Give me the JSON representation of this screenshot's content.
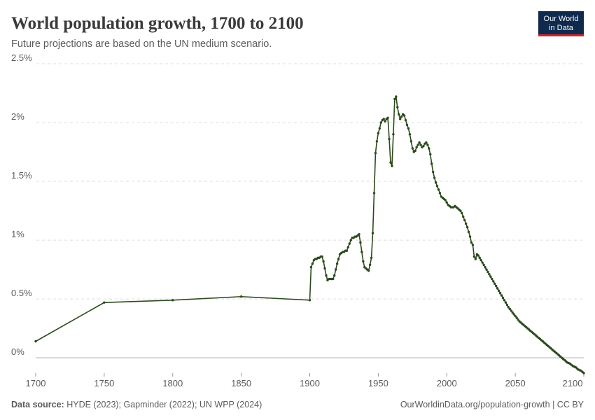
{
  "chart_data": {
    "type": "line",
    "title": "World population growth, 1700 to 2100",
    "subtitle": "Future projections are based on the UN medium scenario.",
    "logo": [
      "Our World",
      "in Data"
    ],
    "source_label": "Data source:",
    "source": "HYDE (2023); Gapminder (2022); UN WPP (2024)",
    "footer_right": "OurWorldinData.org/population-growth | CC BY",
    "xlim": [
      1700,
      2100
    ],
    "xticks": [
      1700,
      1750,
      1800,
      1850,
      1900,
      1950,
      2000,
      2050,
      2100
    ],
    "ylim": [
      -0.13,
      2.5
    ],
    "yticks": [
      {
        "value": 0,
        "label": "0%"
      },
      {
        "value": 0.5,
        "label": "0.5%"
      },
      {
        "value": 1,
        "label": "1%"
      },
      {
        "value": 1.5,
        "label": "1.5%"
      },
      {
        "value": 2,
        "label": "2%"
      },
      {
        "value": 2.5,
        "label": "2.5%"
      }
    ],
    "grid": true,
    "x": [
      1700,
      1750,
      1800,
      1850,
      1900,
      1901,
      1902,
      1903,
      1904,
      1905,
      1906,
      1907,
      1908,
      1909,
      1910,
      1911,
      1912,
      1913,
      1914,
      1915,
      1916,
      1917,
      1918,
      1919,
      1920,
      1921,
      1922,
      1923,
      1924,
      1925,
      1926,
      1927,
      1928,
      1929,
      1930,
      1931,
      1932,
      1933,
      1934,
      1935,
      1936,
      1937,
      1938,
      1939,
      1940,
      1941,
      1942,
      1943,
      1944,
      1945,
      1946,
      1947,
      1948,
      1949,
      1950,
      1951,
      1952,
      1953,
      1954,
      1955,
      1956,
      1957,
      1958,
      1959,
      1960,
      1961,
      1962,
      1963,
      1964,
      1965,
      1966,
      1967,
      1968,
      1969,
      1970,
      1971,
      1972,
      1973,
      1974,
      1975,
      1976,
      1977,
      1978,
      1979,
      1980,
      1981,
      1982,
      1983,
      1984,
      1985,
      1986,
      1987,
      1988,
      1989,
      1990,
      1991,
      1992,
      1993,
      1994,
      1995,
      1996,
      1997,
      1998,
      1999,
      2000,
      2001,
      2002,
      2003,
      2004,
      2005,
      2006,
      2007,
      2008,
      2009,
      2010,
      2011,
      2012,
      2013,
      2014,
      2015,
      2016,
      2017,
      2018,
      2019,
      2020,
      2021,
      2022,
      2023,
      2024,
      2025,
      2026,
      2027,
      2028,
      2029,
      2030,
      2031,
      2032,
      2033,
      2034,
      2035,
      2036,
      2037,
      2038,
      2039,
      2040,
      2041,
      2042,
      2043,
      2044,
      2045,
      2046,
      2047,
      2048,
      2049,
      2050,
      2051,
      2052,
      2053,
      2054,
      2055,
      2056,
      2057,
      2058,
      2059,
      2060,
      2061,
      2062,
      2063,
      2064,
      2065,
      2066,
      2067,
      2068,
      2069,
      2070,
      2071,
      2072,
      2073,
      2074,
      2075,
      2076,
      2077,
      2078,
      2079,
      2080,
      2081,
      2082,
      2083,
      2084,
      2085,
      2086,
      2087,
      2088,
      2089,
      2090,
      2091,
      2092,
      2093,
      2094,
      2095,
      2096,
      2097,
      2098,
      2099,
      2100
    ],
    "series": [
      {
        "name": "World",
        "color": "#2b4a1c",
        "values": [
          0.14,
          0.47,
          0.49,
          0.52,
          0.49,
          0.77,
          0.8,
          0.83,
          0.84,
          0.84,
          0.85,
          0.85,
          0.86,
          0.86,
          0.82,
          0.76,
          0.7,
          0.66,
          0.67,
          0.67,
          0.67,
          0.67,
          0.7,
          0.75,
          0.8,
          0.84,
          0.88,
          0.89,
          0.9,
          0.9,
          0.91,
          0.91,
          0.94,
          0.97,
          1.0,
          1.02,
          1.02,
          1.03,
          1.03,
          1.04,
          1.05,
          0.98,
          0.9,
          0.82,
          0.77,
          0.76,
          0.75,
          0.74,
          0.79,
          0.85,
          1.06,
          1.4,
          1.74,
          1.84,
          1.91,
          1.95,
          2.0,
          2.02,
          2.03,
          2.01,
          2.03,
          2.04,
          1.86,
          1.66,
          1.63,
          1.9,
          2.2,
          2.22,
          2.13,
          2.07,
          2.03,
          2.05,
          2.07,
          2.06,
          2.02,
          1.98,
          1.95,
          1.9,
          1.84,
          1.78,
          1.75,
          1.76,
          1.79,
          1.81,
          1.83,
          1.81,
          1.79,
          1.8,
          1.82,
          1.83,
          1.81,
          1.78,
          1.73,
          1.65,
          1.58,
          1.53,
          1.49,
          1.46,
          1.43,
          1.4,
          1.37,
          1.36,
          1.35,
          1.34,
          1.32,
          1.3,
          1.29,
          1.28,
          1.28,
          1.28,
          1.29,
          1.28,
          1.27,
          1.26,
          1.25,
          1.23,
          1.2,
          1.17,
          1.14,
          1.11,
          1.07,
          1.03,
          0.98,
          0.96,
          0.86,
          0.84,
          0.88,
          0.87,
          0.85,
          0.83,
          0.81,
          0.79,
          0.77,
          0.75,
          0.73,
          0.71,
          0.69,
          0.67,
          0.65,
          0.63,
          0.61,
          0.59,
          0.57,
          0.55,
          0.53,
          0.51,
          0.49,
          0.47,
          0.45,
          0.43,
          0.415,
          0.4,
          0.385,
          0.37,
          0.355,
          0.34,
          0.325,
          0.31,
          0.3,
          0.29,
          0.28,
          0.27,
          0.26,
          0.25,
          0.24,
          0.23,
          0.22,
          0.21,
          0.2,
          0.19,
          0.18,
          0.17,
          0.16,
          0.15,
          0.14,
          0.13,
          0.12,
          0.11,
          0.1,
          0.09,
          0.08,
          0.07,
          0.06,
          0.05,
          0.04,
          0.03,
          0.02,
          0.01,
          0.0,
          -0.01,
          -0.02,
          -0.03,
          -0.04,
          -0.045,
          -0.05,
          -0.06,
          -0.07,
          -0.075,
          -0.08,
          -0.09,
          -0.1,
          -0.105,
          -0.11,
          -0.12,
          -0.13
        ]
      }
    ]
  }
}
